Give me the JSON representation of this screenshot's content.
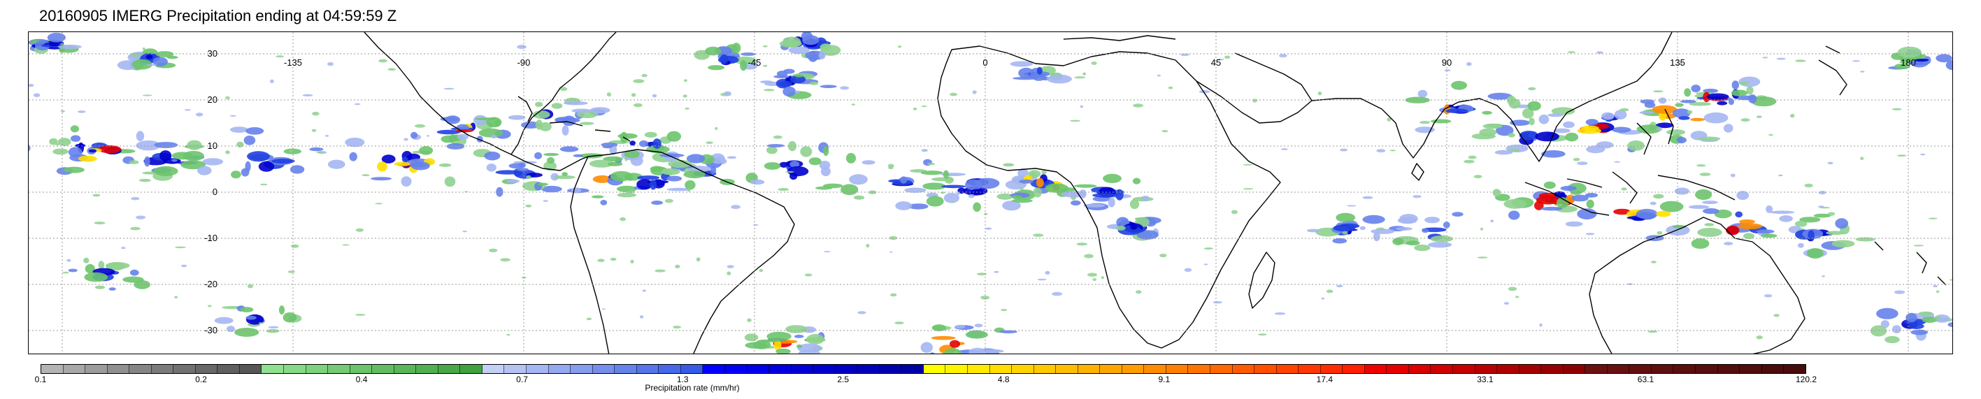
{
  "title": "20160905 IMERG Precipitation ending at 04:59:59 Z",
  "map": {
    "longitude_labels": [
      "-135",
      "-90",
      "-45",
      "0",
      "45",
      "90",
      "135",
      "180"
    ],
    "latitude_labels": [
      "30",
      "20",
      "10",
      "0",
      "-10",
      "-20",
      "-30"
    ],
    "grid": "dotted"
  },
  "colorbar": {
    "title": "Precipitation rate (mm/hr)",
    "tick_labels": [
      "0.1",
      "0.2",
      "0.4",
      "0.7",
      "1.3",
      "2.5",
      "4.8",
      "9.1",
      "17.4",
      "33.1",
      "63.1",
      "120.2"
    ],
    "colors": [
      "#b4b4b4",
      "#a8a8a8",
      "#9c9c9c",
      "#909090",
      "#858585",
      "#7b7b7b",
      "#717171",
      "#686868",
      "#5f5f5f",
      "#565656",
      "#8fe08f",
      "#86d986",
      "#7dd27d",
      "#74cb74",
      "#6bc46b",
      "#62bd62",
      "#59b659",
      "#50af50",
      "#47a847",
      "#3fa13f",
      "#c4cff5",
      "#b5c3f4",
      "#a5b6f2",
      "#95a9f0",
      "#869cef",
      "#768fed",
      "#6682eb",
      "#5775ea",
      "#4768e8",
      "#375be6",
      "#0000ff",
      "#0000f5",
      "#0000eb",
      "#0000e1",
      "#0000d7",
      "#0000cd",
      "#0000c3",
      "#0000b9",
      "#0000af",
      "#0000a5",
      "#ffff00",
      "#fff400",
      "#ffe900",
      "#ffde00",
      "#ffd300",
      "#ffc800",
      "#ffbd00",
      "#ffb200",
      "#ffa700",
      "#ff9c00",
      "#ff8c00",
      "#ff8000",
      "#ff7400",
      "#ff6800",
      "#ff5c00",
      "#ff5000",
      "#ff4400",
      "#ff3800",
      "#ff2c00",
      "#ff2000",
      "#f00000",
      "#e50000",
      "#da0000",
      "#cf0000",
      "#c40000",
      "#b90000",
      "#ae0000",
      "#a30000",
      "#980000",
      "#8d0000",
      "#6b1010",
      "#671010",
      "#630f0f",
      "#5f0f0f",
      "#5b0e0e",
      "#570e0e",
      "#530d0d",
      "#4f0d0d",
      "#4b0c0c",
      "#470c0c"
    ]
  }
}
